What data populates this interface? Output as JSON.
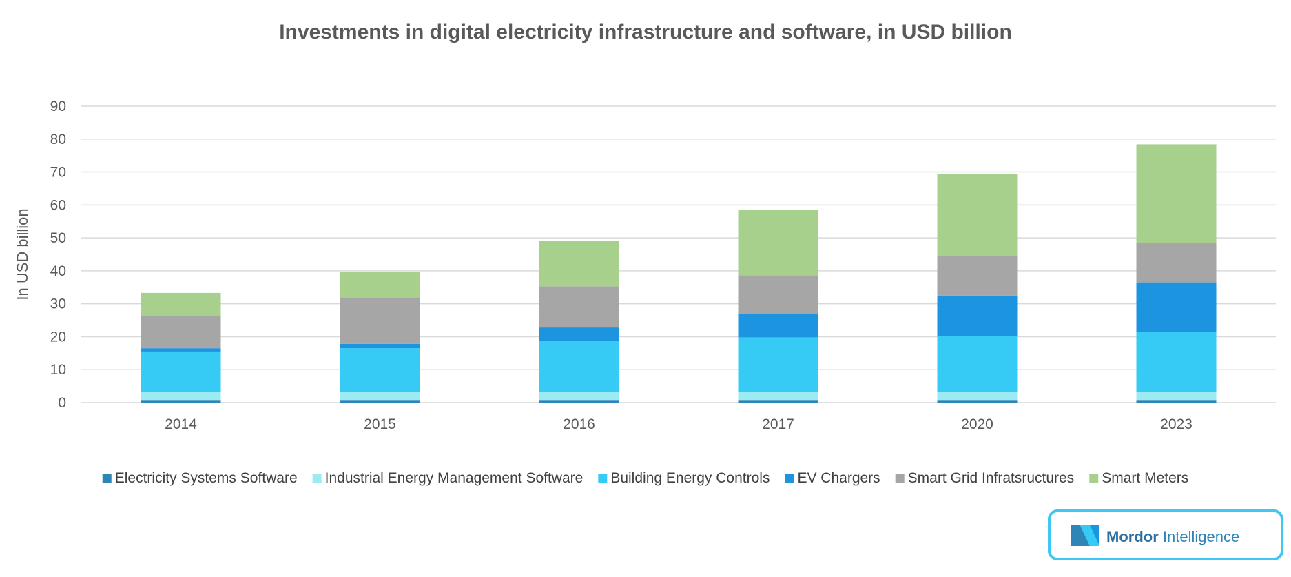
{
  "chart_data": {
    "type": "bar",
    "stacked": true,
    "title": "Investments in digital electricity infrastructure and software, in USD billion",
    "xlabel": "",
    "ylabel": "In USD billion",
    "ylim": [
      0,
      90
    ],
    "yticks": [
      0,
      10,
      20,
      30,
      40,
      50,
      60,
      70,
      80,
      90
    ],
    "grid": true,
    "legend_position": "bottom",
    "categories": [
      "2014",
      "2015",
      "2016",
      "2017",
      "2020",
      "2023"
    ],
    "series": [
      {
        "name": "Electricity Systems Software",
        "color": "#2E86B8",
        "values": [
          0.8,
          0.8,
          0.8,
          0.8,
          0.8,
          0.8
        ]
      },
      {
        "name": "Industrial Energy Management Software",
        "color": "#9DEBF2",
        "values": [
          2.5,
          2.5,
          2.5,
          2.5,
          2.5,
          2.5
        ]
      },
      {
        "name": "Building Energy Controls",
        "color": "#35CBF5",
        "values": [
          12.2,
          13.2,
          15.5,
          16.5,
          17.0,
          18.1
        ]
      },
      {
        "name": "EV Chargers",
        "color": "#1C94E0",
        "values": [
          1.0,
          1.3,
          4.0,
          7.0,
          12.2,
          15.1
        ]
      },
      {
        "name": "Smart Grid Infratsructures",
        "color": "#A6A6A6",
        "values": [
          9.8,
          14.0,
          12.5,
          11.8,
          11.9,
          11.9
        ]
      },
      {
        "name": "Smart Meters",
        "color": "#A7D08C",
        "values": [
          7.0,
          7.9,
          13.8,
          20.0,
          25.0,
          30.0
        ]
      }
    ]
  },
  "logo": {
    "text": "Mordor Intelligence",
    "brand_color": "#3CC8F0"
  }
}
